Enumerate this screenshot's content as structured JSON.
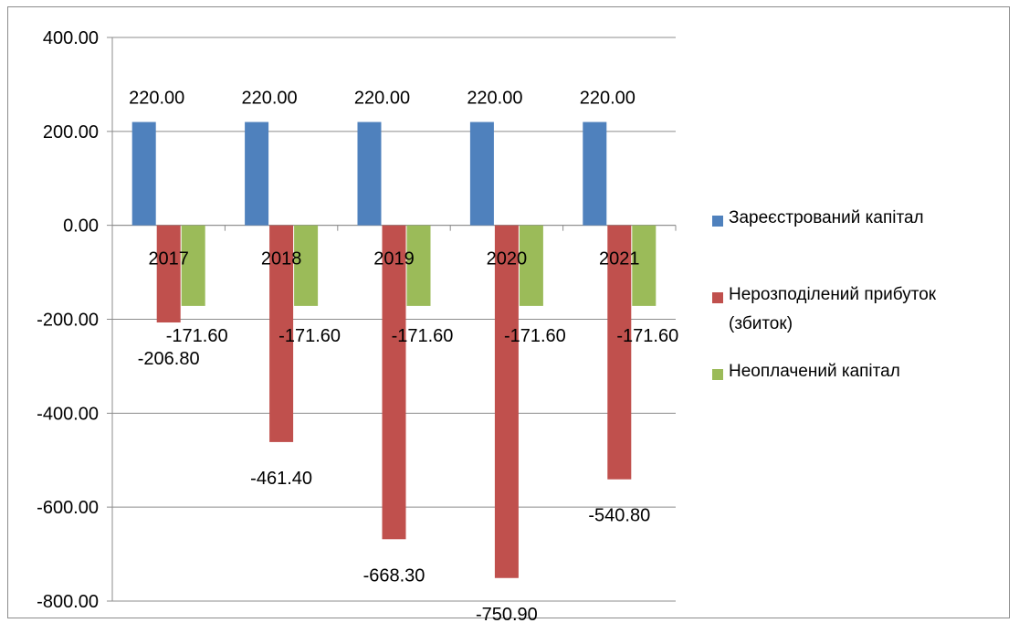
{
  "chart_data": {
    "type": "bar",
    "categories": [
      "2017",
      "2018",
      "2019",
      "2020",
      "2021"
    ],
    "series": [
      {
        "name": "Зареєстрований капітал",
        "color": "#4f81bd",
        "values": [
          220.0,
          220.0,
          220.0,
          220.0,
          220.0
        ],
        "labels": [
          "220.00",
          "220.00",
          "220.00",
          "220.00",
          "220.00"
        ]
      },
      {
        "name": "Нерозподілений прибуток\n(збиток)",
        "color": "#c0504d",
        "values": [
          -206.8,
          -461.4,
          -668.3,
          -750.9,
          -540.8
        ],
        "labels": [
          "-206.80",
          "-461.40",
          "-668.30",
          "-750.90",
          "-540.80"
        ]
      },
      {
        "name": "Неоплачений капітал",
        "color": "#9bbb59",
        "values": [
          -171.6,
          -171.6,
          -171.6,
          -171.6,
          -171.6
        ],
        "labels": [
          "-171.60",
          "-171.60",
          "-171.60",
          "-171.60",
          "-171.60"
        ]
      }
    ],
    "yticks": [
      "400.00",
      "200.00",
      "0.00",
      "-200.00",
      "-400.00",
      "-600.00",
      "-800.00"
    ],
    "ylim": [
      -800,
      400
    ],
    "grid": true,
    "legend_position": "right"
  }
}
